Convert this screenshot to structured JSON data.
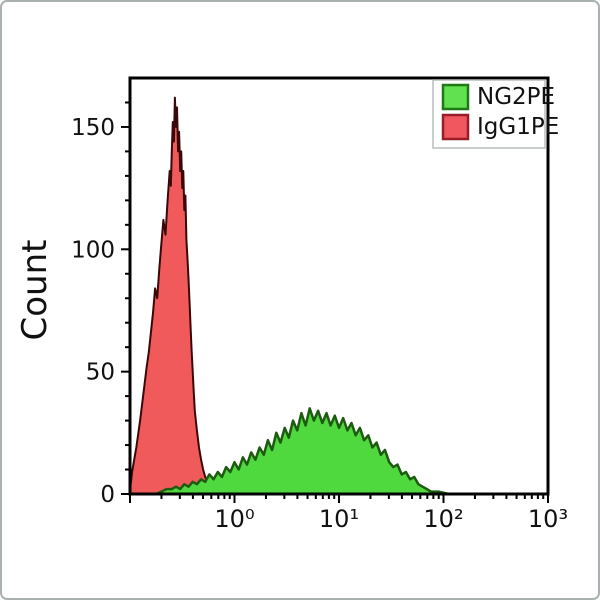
{
  "figure": {
    "border_color": "#a9b2b0",
    "background": "#ffffff"
  },
  "chart_data": {
    "type": "area",
    "subtype": "flow-cytometry-overlay-histogram",
    "title": "",
    "xlabel": "",
    "ylabel": "Count",
    "x_scale": "log10",
    "xlim_log": [
      -1,
      3
    ],
    "ylim": [
      0,
      170
    ],
    "grid": "off",
    "x_tick_values_log": [
      0,
      1,
      2,
      3
    ],
    "x_tick_labels": [
      "10⁰",
      "10¹",
      "10²",
      "10³"
    ],
    "y_tick_values": [
      0,
      50,
      100,
      150
    ],
    "y_tick_labels": [
      "0",
      "50",
      "100",
      "150"
    ],
    "y_minor_step": 10,
    "legend": {
      "position": "top-right",
      "entries": [
        {
          "label": "NG2PE",
          "color": "#62E150",
          "border": "#1E7A14"
        },
        {
          "label": "IgG1PE",
          "color": "#F1575E",
          "border": "#991C26"
        }
      ]
    },
    "series": [
      {
        "id": "igg1pe",
        "name": "IgG1PE",
        "fill": "#F15A5A",
        "stroke": "#3A0808",
        "stroke_width": 2,
        "points": [
          [
            -1.0,
            2
          ],
          [
            -0.99,
            5
          ],
          [
            -0.98,
            9
          ],
          [
            -0.96,
            14
          ],
          [
            -0.94,
            19
          ],
          [
            -0.92,
            25
          ],
          [
            -0.9,
            31
          ],
          [
            -0.88,
            38
          ],
          [
            -0.86,
            45
          ],
          [
            -0.84,
            52
          ],
          [
            -0.82,
            58
          ],
          [
            -0.8,
            66
          ],
          [
            -0.78,
            74
          ],
          [
            -0.76,
            84
          ],
          [
            -0.74,
            80
          ],
          [
            -0.72,
            92
          ],
          [
            -0.7,
            102
          ],
          [
            -0.68,
            112
          ],
          [
            -0.66,
            106
          ],
          [
            -0.64,
            120
          ],
          [
            -0.62,
            132
          ],
          [
            -0.61,
            126
          ],
          [
            -0.6,
            140
          ],
          [
            -0.59,
            152
          ],
          [
            -0.58,
            144
          ],
          [
            -0.57,
            162
          ],
          [
            -0.56,
            150
          ],
          [
            -0.55,
            158
          ],
          [
            -0.54,
            140
          ],
          [
            -0.53,
            148
          ],
          [
            -0.52,
            132
          ],
          [
            -0.51,
            140
          ],
          [
            -0.5,
            125
          ],
          [
            -0.49,
            132
          ],
          [
            -0.48,
            116
          ],
          [
            -0.47,
            122
          ],
          [
            -0.46,
            104
          ],
          [
            -0.45,
            96
          ],
          [
            -0.44,
            88
          ],
          [
            -0.43,
            78
          ],
          [
            -0.42,
            68
          ],
          [
            -0.41,
            58
          ],
          [
            -0.4,
            50
          ],
          [
            -0.39,
            42
          ],
          [
            -0.38,
            34
          ],
          [
            -0.36,
            26
          ],
          [
            -0.34,
            19
          ],
          [
            -0.32,
            14
          ],
          [
            -0.3,
            10
          ],
          [
            -0.28,
            7
          ],
          [
            -0.26,
            5
          ],
          [
            -0.24,
            4
          ],
          [
            -0.2,
            3
          ],
          [
            -0.16,
            2
          ],
          [
            -0.1,
            1
          ],
          [
            -0.02,
            0
          ]
        ]
      },
      {
        "id": "ng2pe",
        "name": "NG2PE",
        "fill": "#50D83F",
        "stroke": "#1D5C10",
        "stroke_width": 2.5,
        "points": [
          [
            -0.75,
            0
          ],
          [
            -0.7,
            1
          ],
          [
            -0.65,
            2
          ],
          [
            -0.6,
            2
          ],
          [
            -0.56,
            3
          ],
          [
            -0.52,
            2
          ],
          [
            -0.48,
            4
          ],
          [
            -0.44,
            3
          ],
          [
            -0.4,
            5
          ],
          [
            -0.36,
            4
          ],
          [
            -0.32,
            6
          ],
          [
            -0.28,
            5
          ],
          [
            -0.24,
            8
          ],
          [
            -0.2,
            6
          ],
          [
            -0.16,
            9
          ],
          [
            -0.12,
            7
          ],
          [
            -0.08,
            11
          ],
          [
            -0.04,
            9
          ],
          [
            0.0,
            13
          ],
          [
            0.04,
            10
          ],
          [
            0.08,
            15
          ],
          [
            0.12,
            12
          ],
          [
            0.16,
            17
          ],
          [
            0.2,
            14
          ],
          [
            0.24,
            19
          ],
          [
            0.28,
            16
          ],
          [
            0.32,
            22
          ],
          [
            0.36,
            18
          ],
          [
            0.4,
            25
          ],
          [
            0.44,
            21
          ],
          [
            0.48,
            27
          ],
          [
            0.52,
            23
          ],
          [
            0.56,
            30
          ],
          [
            0.6,
            26
          ],
          [
            0.64,
            33
          ],
          [
            0.68,
            28
          ],
          [
            0.72,
            35
          ],
          [
            0.76,
            30
          ],
          [
            0.8,
            34
          ],
          [
            0.84,
            29
          ],
          [
            0.88,
            33
          ],
          [
            0.92,
            28
          ],
          [
            0.96,
            32
          ],
          [
            1.0,
            27
          ],
          [
            1.04,
            31
          ],
          [
            1.08,
            26
          ],
          [
            1.12,
            29
          ],
          [
            1.16,
            24
          ],
          [
            1.2,
            27
          ],
          [
            1.24,
            22
          ],
          [
            1.28,
            24
          ],
          [
            1.32,
            19
          ],
          [
            1.36,
            21
          ],
          [
            1.4,
            16
          ],
          [
            1.44,
            18
          ],
          [
            1.48,
            13
          ],
          [
            1.52,
            11
          ],
          [
            1.56,
            12
          ],
          [
            1.6,
            8
          ],
          [
            1.64,
            9
          ],
          [
            1.68,
            6
          ],
          [
            1.72,
            7
          ],
          [
            1.76,
            4
          ],
          [
            1.8,
            3
          ],
          [
            1.84,
            2
          ],
          [
            1.88,
            1
          ],
          [
            1.95,
            1
          ],
          [
            2.05,
            0
          ]
        ]
      }
    ]
  }
}
